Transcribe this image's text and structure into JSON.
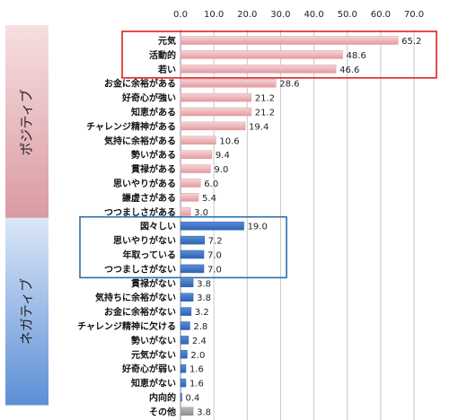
{
  "chart_data": {
    "type": "bar",
    "orientation": "horizontal",
    "xlim": [
      0,
      70
    ],
    "xticks": [
      "0.0",
      "10.0",
      "20.0",
      "30.0",
      "40.0",
      "50.0",
      "60.0",
      "70.0"
    ],
    "grid": true,
    "groups": [
      {
        "label": "ポジティブ",
        "color_bar_light": "#f3d6d8",
        "color_bar_dark": "#e39aa0",
        "color_panel_top": "#f6dfe1",
        "color_panel_bottom": "#d99aa0",
        "highlight_box_color": "#e02020",
        "highlight_count": 3,
        "categories": [
          "元気",
          "活動的",
          "若い",
          "お金に余裕がある",
          "好奇心が強い",
          "知恵がある",
          "チャレンジ精神がある",
          "気持に余裕がある",
          "勢いがある",
          "貫禄がある",
          "思いやりがある",
          "謙虚さがある",
          "つつましさがある"
        ],
        "values": [
          65.2,
          48.6,
          46.6,
          28.6,
          21.2,
          21.2,
          19.4,
          10.6,
          9.4,
          9.0,
          6.0,
          5.4,
          3.0
        ]
      },
      {
        "label": "ネガティブ",
        "color_bar_light": "#5b8ed3",
        "color_bar_dark": "#2f63b5",
        "color_panel_top": "#dbe7f7",
        "color_panel_bottom": "#5d8fd6",
        "highlight_box_color": "#2a6fa8",
        "highlight_count": 4,
        "categories": [
          "図々しい",
          "思いやりがない",
          "年取っている",
          "つつましさがない",
          "貫禄がない",
          "気持ちに余裕がない",
          "お金に余裕がない",
          "チャレンジ精神に欠ける",
          "勢いがない",
          "元気がない",
          "好奇心が弱い",
          "知恵がない",
          "内向的"
        ],
        "values": [
          19.0,
          7.2,
          7.0,
          7.0,
          3.8,
          3.8,
          3.2,
          2.8,
          2.4,
          2.0,
          1.6,
          1.6,
          0.4
        ]
      },
      {
        "label": "",
        "color_bar_light": "#bdbdbd",
        "color_bar_dark": "#8e8e8e",
        "categories": [
          "その他"
        ],
        "values": [
          3.8
        ]
      }
    ]
  }
}
